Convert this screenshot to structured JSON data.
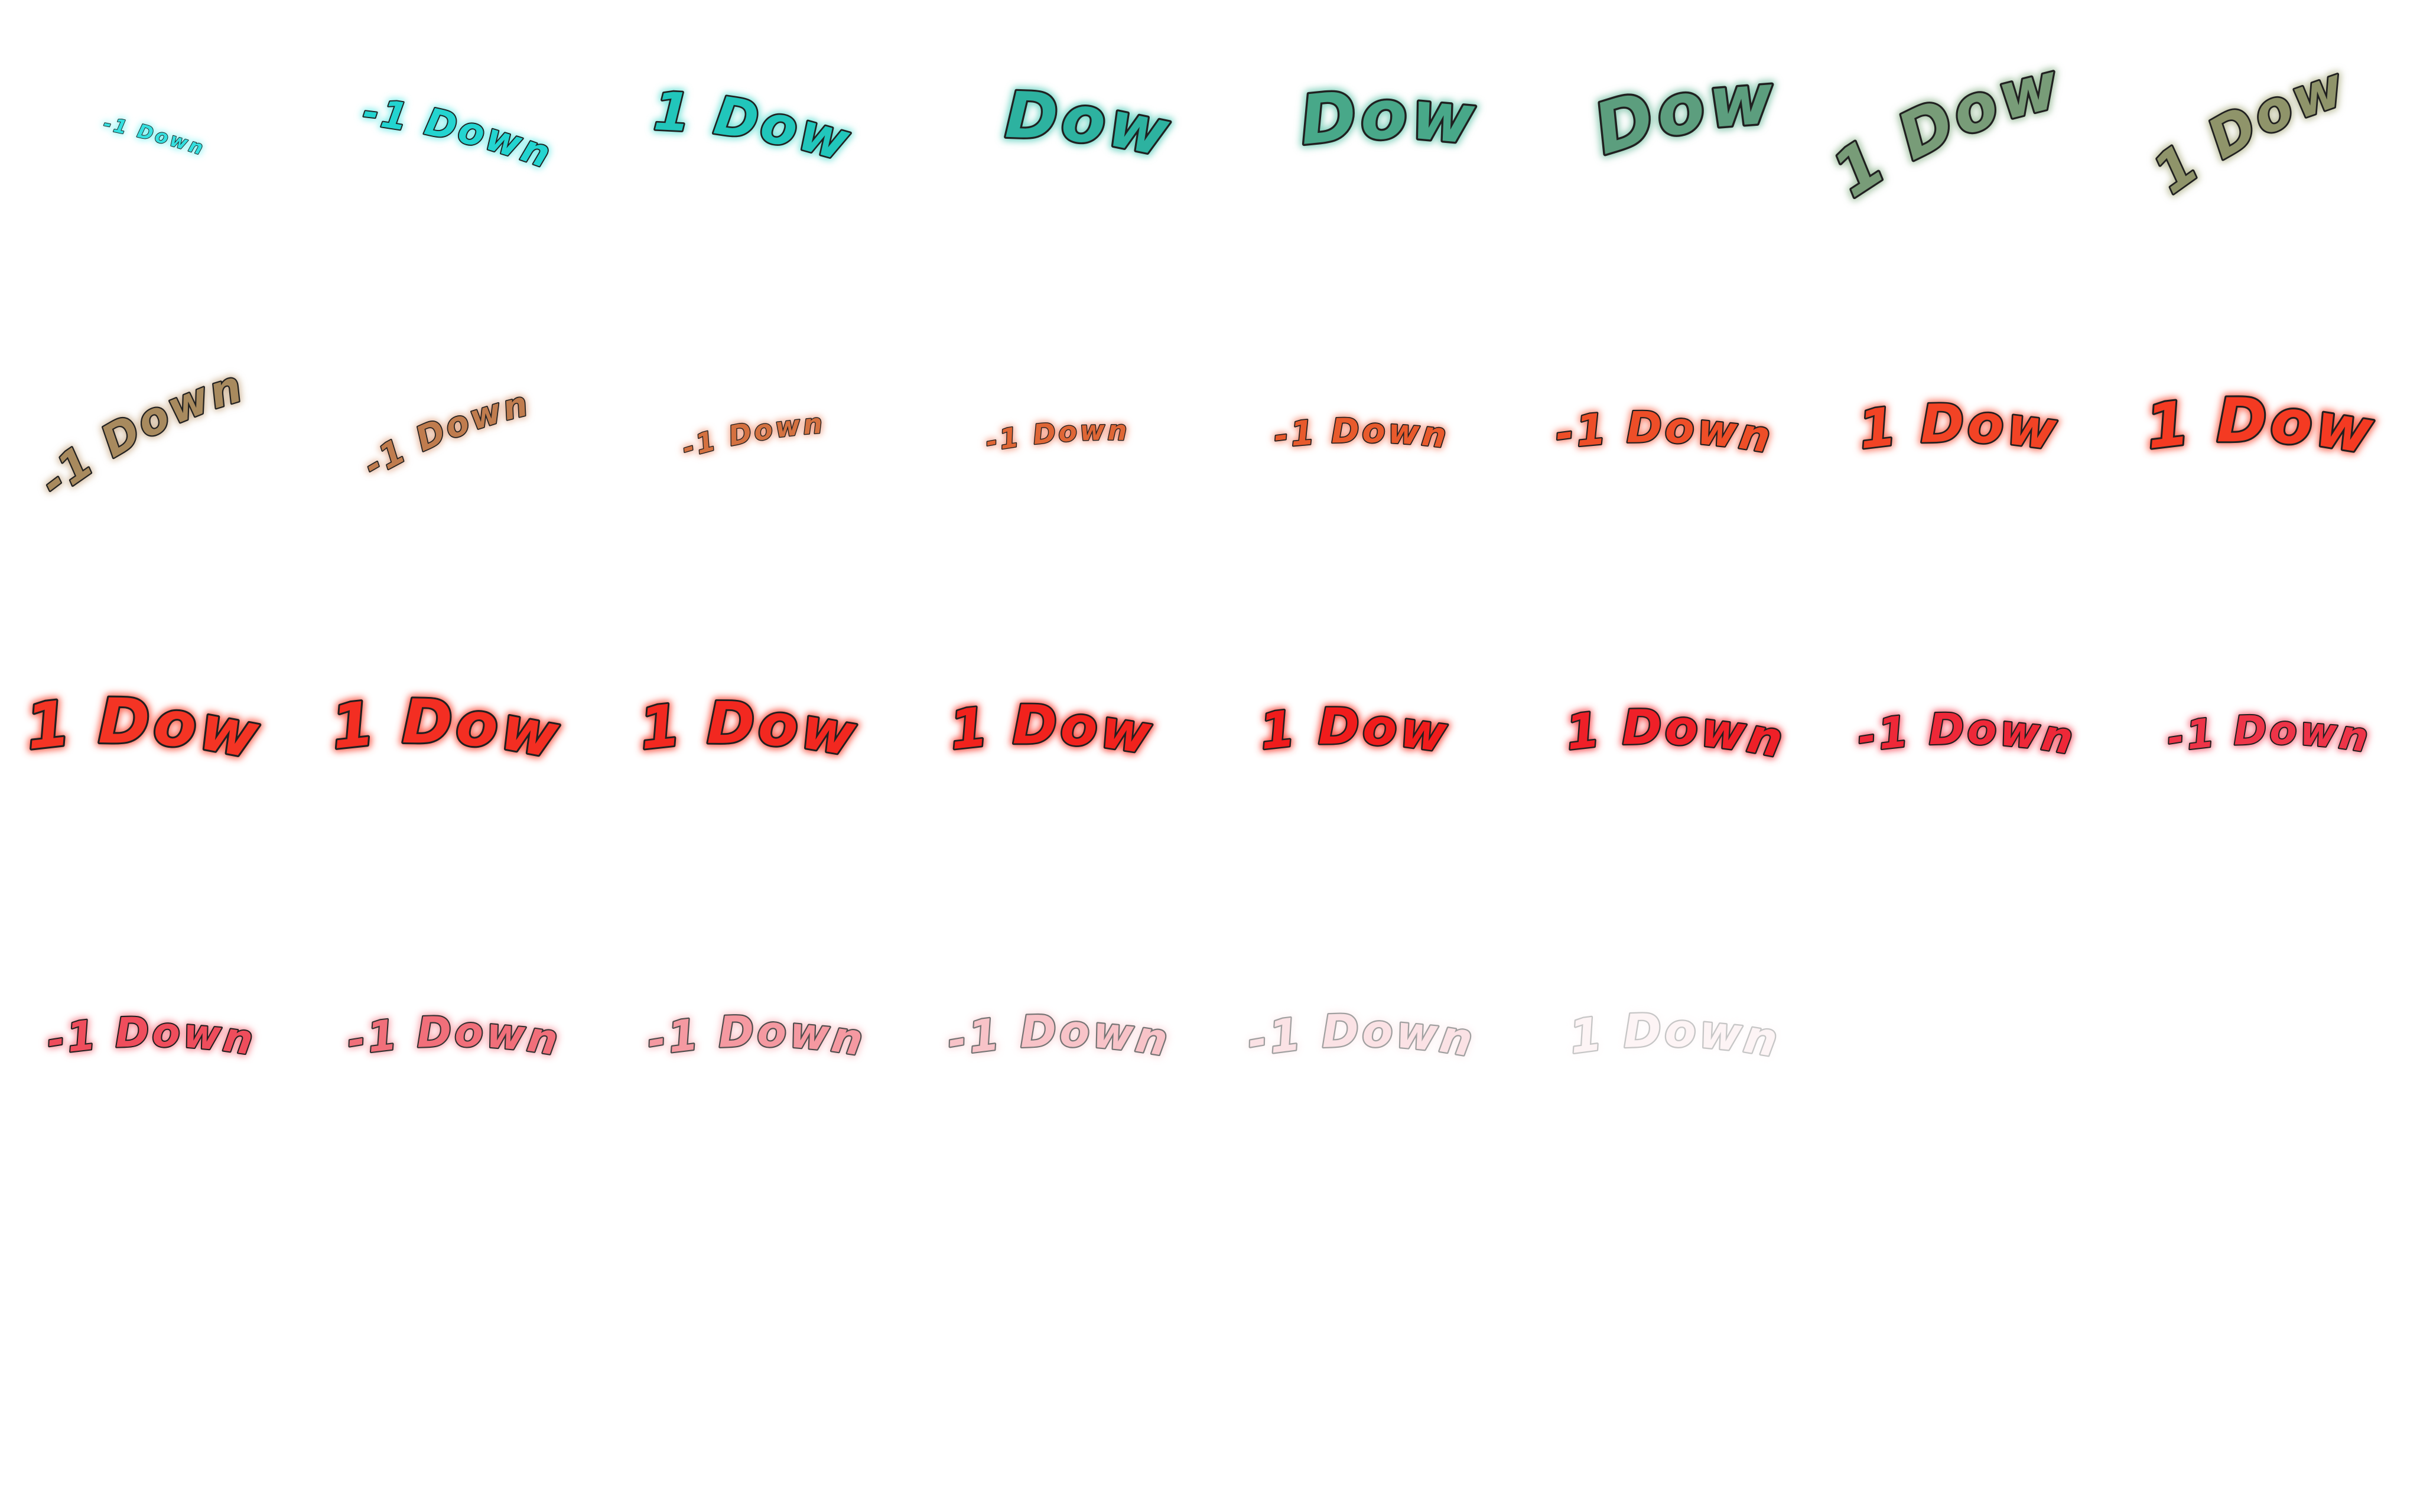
{
  "sprite": {
    "text": "-1 Down",
    "outline_color": "#202020",
    "frames": [
      {
        "color": "#33e0e0",
        "glow": "#7ff4f4",
        "opacity": 1.0,
        "scale": 0.38,
        "curve": 0.35,
        "tilt": 0.26
      },
      {
        "color": "#23d4d0",
        "glow": "#74ecea",
        "opacity": 1.0,
        "scale": 0.76,
        "curve": 0.35,
        "tilt": 0.24
      },
      {
        "color": "#21c6bb",
        "glow": "#6fe2d8",
        "opacity": 1.0,
        "scale": 1.06,
        "curve": 0.38,
        "tilt": 0.18
      },
      {
        "color": "#2db2a0",
        "glow": "#6fd6c6",
        "opacity": 1.0,
        "scale": 1.28,
        "curve": 0.4,
        "tilt": 0.08
      },
      {
        "color": "#48a889",
        "glow": "#7fd0bb",
        "opacity": 1.0,
        "scale": 1.36,
        "curve": 0.42,
        "tilt": -0.05
      },
      {
        "color": "#5c9e7e",
        "glow": "#8ecab3",
        "opacity": 1.0,
        "scale": 1.4,
        "curve": 0.5,
        "tilt": -0.24
      },
      {
        "color": "#789c78",
        "glow": "#a3c2a3",
        "opacity": 1.0,
        "scale": 1.28,
        "curve": 0.6,
        "tilt": -0.42
      },
      {
        "color": "#8f946a",
        "glow": "#b9bc98",
        "opacity": 1.0,
        "scale": 1.1,
        "curve": 0.65,
        "tilt": -0.5
      },
      {
        "color": "#a88a5e",
        "glow": "#cfb494",
        "opacity": 1.0,
        "scale": 0.88,
        "curve": 0.65,
        "tilt": -0.52
      },
      {
        "color": "#c07c4e",
        "glow": "#e2a98a",
        "opacity": 1.0,
        "scale": 0.68,
        "curve": 0.58,
        "tilt": -0.4
      },
      {
        "color": "#d47140",
        "glow": "#f19d80",
        "opacity": 1.0,
        "scale": 0.55,
        "curve": 0.45,
        "tilt": -0.18
      },
      {
        "color": "#df6635",
        "glow": "#f59378",
        "opacity": 1.0,
        "scale": 0.55,
        "curve": 0.4,
        "tilt": -0.08
      },
      {
        "color": "#e85a2c",
        "glow": "#f88a70",
        "opacity": 1.0,
        "scale": 0.68,
        "curve": 0.38,
        "tilt": 0.0
      },
      {
        "color": "#ee4e28",
        "glow": "#fa7d66",
        "opacity": 1.0,
        "scale": 0.86,
        "curve": 0.38,
        "tilt": 0.02
      },
      {
        "color": "#f24325",
        "glow": "#fb735e",
        "opacity": 1.0,
        "scale": 1.06,
        "curve": 0.4,
        "tilt": 0.02
      },
      {
        "color": "#f43a22",
        "glow": "#fc6a56",
        "opacity": 1.0,
        "scale": 1.22,
        "curve": 0.4,
        "tilt": 0.04
      },
      {
        "color": "#f43424",
        "glow": "#fc624f",
        "opacity": 1.0,
        "scale": 1.25,
        "curve": 0.42,
        "tilt": 0.06
      },
      {
        "color": "#f32e22",
        "glow": "#fc5a48",
        "opacity": 1.0,
        "scale": 1.22,
        "curve": 0.42,
        "tilt": 0.06
      },
      {
        "color": "#f22820",
        "glow": "#fb5242",
        "opacity": 1.0,
        "scale": 1.16,
        "curve": 0.42,
        "tilt": 0.05
      },
      {
        "color": "#f1221d",
        "glow": "#fb4a3c",
        "opacity": 1.0,
        "scale": 1.08,
        "curve": 0.42,
        "tilt": 0.04
      },
      {
        "color": "#f01c1c",
        "glow": "#fb4438",
        "opacity": 1.0,
        "scale": 1.0,
        "curve": 0.42,
        "tilt": 0.03
      },
      {
        "color": "#ef2028",
        "glow": "#fa4c50",
        "opacity": 1.0,
        "scale": 0.96,
        "curve": 0.42,
        "tilt": 0.02
      },
      {
        "color": "#ee2838",
        "glow": "#f95868",
        "opacity": 1.0,
        "scale": 0.86,
        "curve": 0.42,
        "tilt": 0.01
      },
      {
        "color": "#ee3448",
        "glow": "#f86678",
        "opacity": 1.0,
        "scale": 0.8,
        "curve": 0.42,
        "tilt": 0.0
      },
      {
        "color": "#ef4d5c",
        "glow": "#f8848f",
        "opacity": 1.0,
        "scale": 0.82,
        "curve": 0.42,
        "tilt": 0.0
      },
      {
        "color": "#f0636f",
        "glow": "#f99aa3",
        "opacity": 0.92,
        "scale": 0.84,
        "curve": 0.42,
        "tilt": 0.0
      },
      {
        "color": "#f3808a",
        "glow": "#fab2b8",
        "opacity": 0.8,
        "scale": 0.86,
        "curve": 0.42,
        "tilt": 0.0
      },
      {
        "color": "#f59fa7",
        "glow": "#fbc8cc",
        "opacity": 0.62,
        "scale": 0.88,
        "curve": 0.42,
        "tilt": 0.0
      },
      {
        "color": "#f7bcc2",
        "glow": "#fcdcdf",
        "opacity": 0.42,
        "scale": 0.9,
        "curve": 0.42,
        "tilt": 0.0
      },
      {
        "color": "#f9d6da",
        "glow": "#fdeaec",
        "opacity": 0.25,
        "scale": 0.92,
        "curve": 0.42,
        "tilt": 0.0
      }
    ]
  }
}
